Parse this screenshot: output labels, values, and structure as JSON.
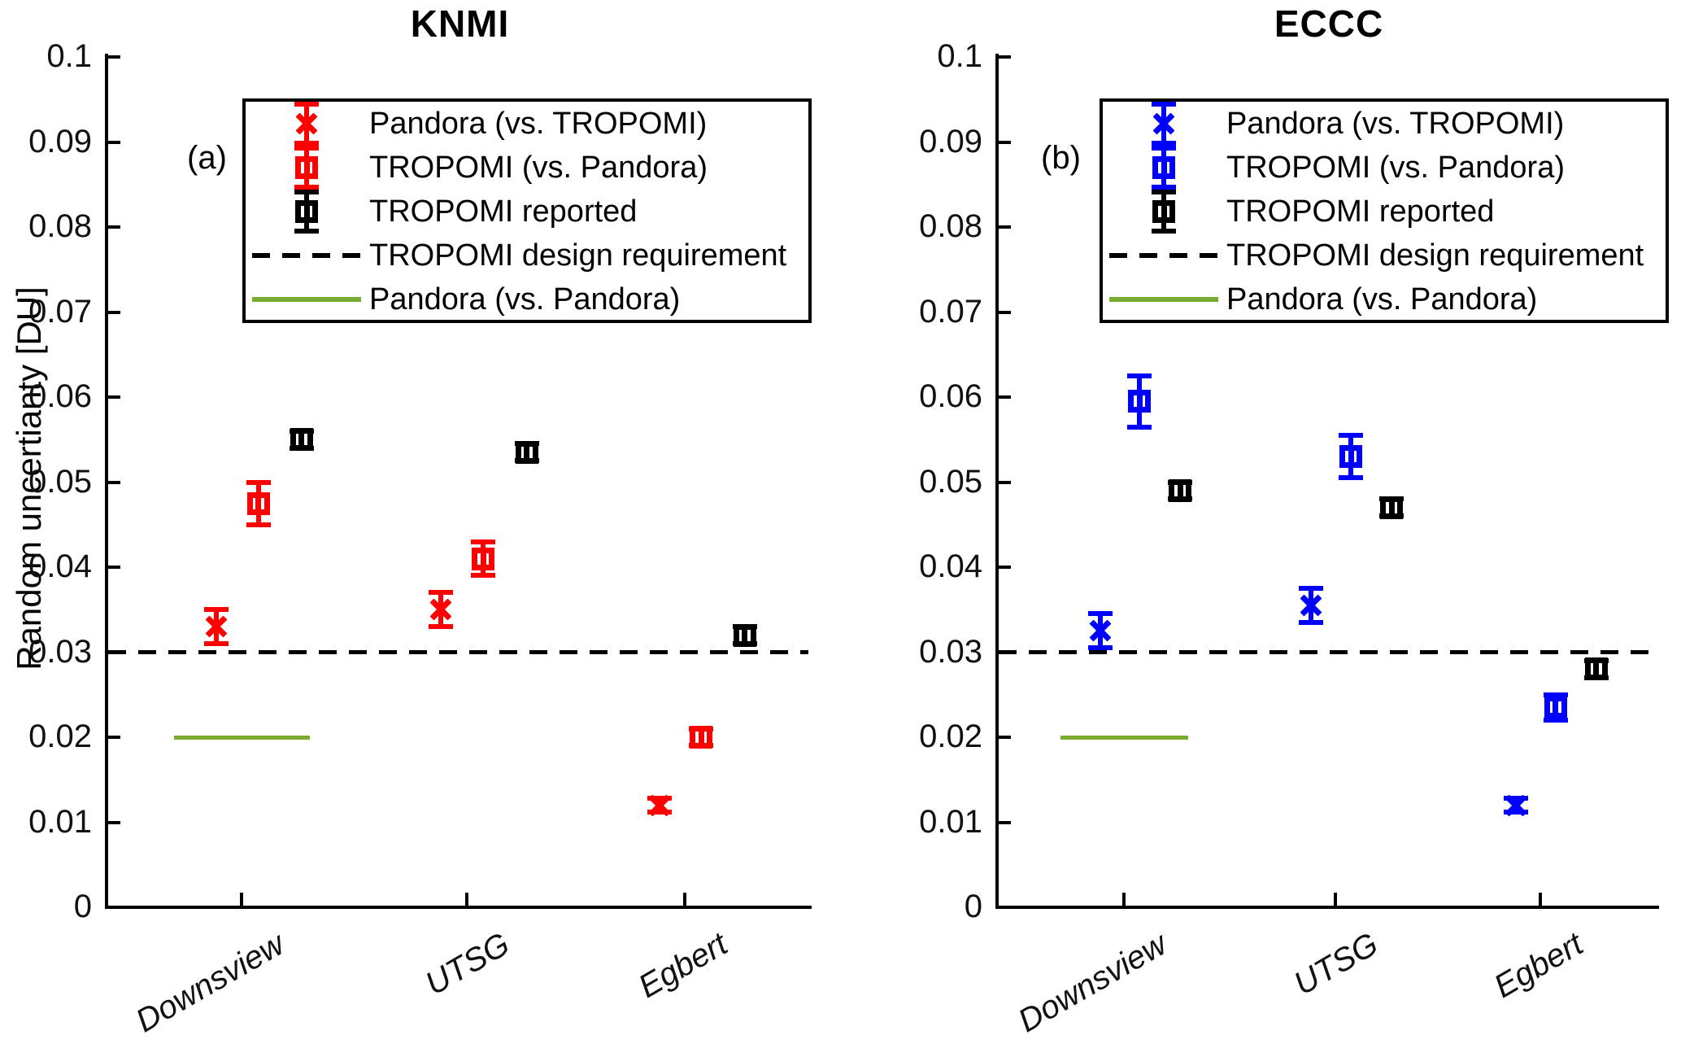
{
  "figure": {
    "ylabel": "Random uncertianty [DU]"
  },
  "chart_data": [
    {
      "type": "scatter",
      "panel_label": "(a)",
      "title": "KNMI",
      "ylabel": "Random uncertianty [DU]",
      "xlabel": "",
      "categories": [
        "Downsview",
        "UTSG",
        "Egbert"
      ],
      "ylim": [
        0,
        0.1
      ],
      "yticks": [
        0,
        0.01,
        0.02,
        0.03,
        0.04,
        0.05,
        0.06,
        0.07,
        0.08,
        0.09,
        0.1
      ],
      "ytick_labels": [
        "0",
        "0.01",
        "0.02",
        "0.03",
        "0.04",
        "0.05",
        "0.06",
        "0.07",
        "0.08",
        "0.09",
        "0.1"
      ],
      "grid": false,
      "legend_position": "upper-left-inside",
      "series": [
        {
          "name": "Pandora (vs. TROPOMI)",
          "marker": "x",
          "color": "#ff0000",
          "values": [
            0.033,
            0.035,
            0.012
          ],
          "errors": [
            0.002,
            0.002,
            0.0008
          ]
        },
        {
          "name": "TROPOMI (vs. Pandora)",
          "marker": "open-square",
          "color": "#ff0000",
          "values": [
            0.0475,
            0.041,
            0.02
          ],
          "errors": [
            0.0025,
            0.002,
            0.001
          ]
        },
        {
          "name": "TROPOMI reported",
          "marker": "open-square",
          "color": "#000000",
          "values": [
            0.055,
            0.0535,
            0.032
          ],
          "errors": [
            0.001,
            0.001,
            0.001
          ]
        }
      ],
      "design_requirement": {
        "label": "TROPOMI design requirement",
        "value": 0.03,
        "style": "dashed",
        "color": "#000000"
      },
      "pandora_line": {
        "label": "Pandora (vs. Pandora)",
        "value": 0.02,
        "category": "Downsview",
        "color": "#77ac30"
      },
      "legend_labels": [
        "Pandora (vs. TROPOMI)",
        "TROPOMI (vs. Pandora)",
        "TROPOMI reported",
        "TROPOMI design requirement",
        "Pandora (vs. Pandora)"
      ]
    },
    {
      "type": "scatter",
      "panel_label": "(b)",
      "title": "ECCC",
      "ylabel": "",
      "xlabel": "",
      "categories": [
        "Downsview",
        "UTSG",
        "Egbert"
      ],
      "ylim": [
        0,
        0.1
      ],
      "yticks": [
        0,
        0.01,
        0.02,
        0.03,
        0.04,
        0.05,
        0.06,
        0.07,
        0.08,
        0.09,
        0.1
      ],
      "ytick_labels": [
        "0",
        "0.01",
        "0.02",
        "0.03",
        "0.04",
        "0.05",
        "0.06",
        "0.07",
        "0.08",
        "0.09",
        "0.1"
      ],
      "grid": false,
      "legend_position": "upper-left-inside",
      "series": [
        {
          "name": "Pandora (vs. TROPOMI)",
          "marker": "x",
          "color": "#0000ff",
          "values": [
            0.0325,
            0.0355,
            0.012
          ],
          "errors": [
            0.002,
            0.002,
            0.0008
          ]
        },
        {
          "name": "TROPOMI (vs. Pandora)",
          "marker": "open-square",
          "color": "#0000ff",
          "values": [
            0.0595,
            0.053,
            0.0235
          ],
          "errors": [
            0.003,
            0.0025,
            0.0015
          ]
        },
        {
          "name": "TROPOMI reported",
          "marker": "open-square",
          "color": "#000000",
          "values": [
            0.049,
            0.047,
            0.028
          ],
          "errors": [
            0.001,
            0.001,
            0.001
          ]
        }
      ],
      "design_requirement": {
        "label": "TROPOMI design requirement",
        "value": 0.03,
        "style": "dashed",
        "color": "#000000"
      },
      "pandora_line": {
        "label": "Pandora (vs. Pandora)",
        "value": 0.02,
        "category": "Downsview",
        "color": "#77ac30"
      },
      "legend_labels": [
        "Pandora (vs. TROPOMI)",
        "TROPOMI (vs. Pandora)",
        "TROPOMI reported",
        "TROPOMI design requirement",
        "Pandora (vs. Pandora)"
      ]
    }
  ]
}
